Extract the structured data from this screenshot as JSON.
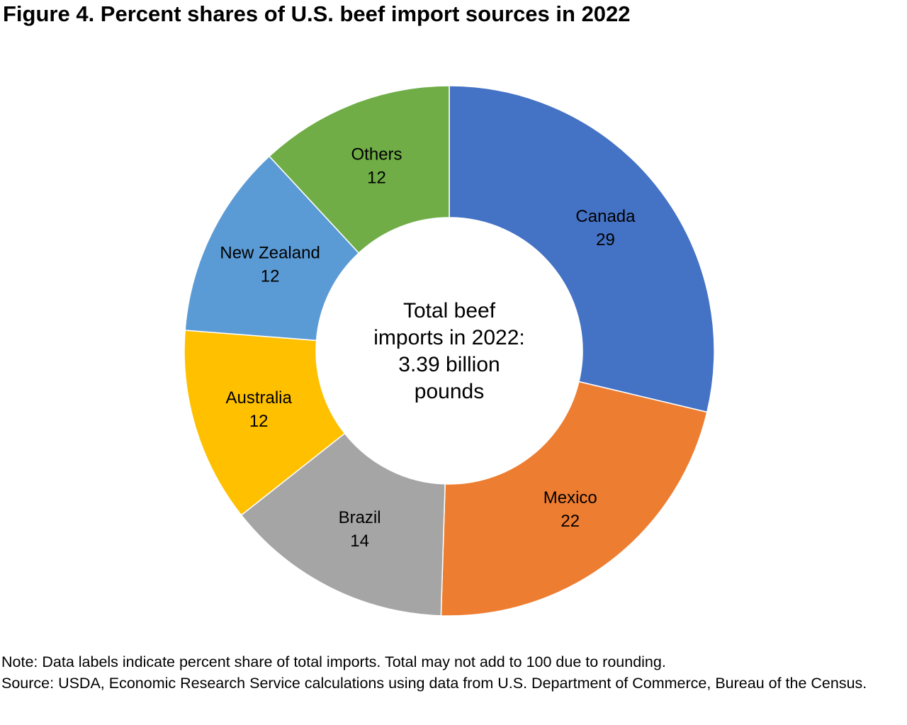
{
  "title": "Figure 4. Percent shares of U.S. beef import sources in 2022",
  "chart_data": {
    "type": "pie",
    "variant": "donut",
    "title": "Figure 4. Percent shares of U.S. beef import sources in 2022",
    "center_label": [
      "Total beef",
      "imports in 2022:",
      "3.39 billion",
      "pounds"
    ],
    "slices": [
      {
        "label": "Canada",
        "value": 29,
        "color": "#4472C4"
      },
      {
        "label": "Mexico",
        "value": 22,
        "color": "#ED7D31"
      },
      {
        "label": "Brazil",
        "value": 14,
        "color": "#A5A5A5"
      },
      {
        "label": "Australia",
        "value": 12,
        "color": "#FFC000"
      },
      {
        "label": "New Zealand",
        "value": 12,
        "color": "#5B9BD5"
      },
      {
        "label": "Others",
        "value": 12,
        "color": "#70AD47"
      }
    ],
    "legend": "none",
    "data_labels": "inside"
  },
  "notes": {
    "note": "Note: Data labels indicate percent share of total imports. Total may not add to 100 due to rounding.",
    "source": "Source: USDA, Economic Research Service calculations using data from U.S. Department of Commerce, Bureau of the Census."
  }
}
